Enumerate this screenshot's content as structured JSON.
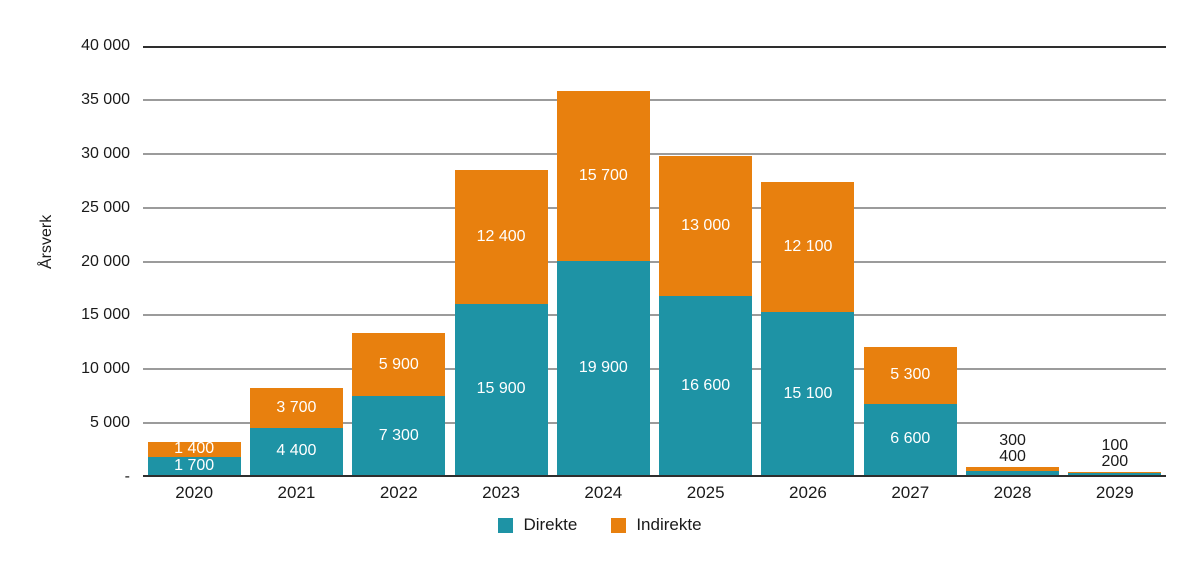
{
  "chart_data": {
    "type": "bar",
    "stacked": true,
    "title": "",
    "xlabel": "",
    "ylabel": "Årsverk",
    "categories": [
      "2020",
      "2021",
      "2022",
      "2023",
      "2024",
      "2025",
      "2026",
      "2027",
      "2028",
      "2029"
    ],
    "series": [
      {
        "name": "Direkte",
        "color": "#1E93A5",
        "values": [
          1700,
          4400,
          7300,
          15900,
          19900,
          16600,
          15100,
          6600,
          400,
          200
        ]
      },
      {
        "name": "Indirekte",
        "color": "#E8800E",
        "values": [
          1400,
          3700,
          5900,
          12400,
          15700,
          13000,
          12100,
          5300,
          300,
          100
        ]
      }
    ],
    "bar_value_labels": [
      {
        "direkte": "1 700",
        "indirekte": "1 400",
        "placement": "inside"
      },
      {
        "direkte": "4 400",
        "indirekte": "3 700",
        "placement": "inside"
      },
      {
        "direkte": "7 300",
        "indirekte": "5 900",
        "placement": "inside"
      },
      {
        "direkte": "15 900",
        "indirekte": "12 400",
        "placement": "inside"
      },
      {
        "direkte": "19 900",
        "indirekte": "15 700",
        "placement": "inside"
      },
      {
        "direkte": "16 600",
        "indirekte": "13 000",
        "placement": "inside"
      },
      {
        "direkte": "15 100",
        "indirekte": "12 100",
        "placement": "inside"
      },
      {
        "direkte": "6 600",
        "indirekte": "5 300",
        "placement": "inside"
      },
      {
        "direkte": "400",
        "indirekte": "300",
        "placement": "outside"
      },
      {
        "direkte": "200",
        "indirekte": "100",
        "placement": "outside"
      }
    ],
    "ylim": [
      0,
      40000
    ],
    "ytick_step": 5000,
    "yticks": [
      0,
      5000,
      10000,
      15000,
      20000,
      25000,
      30000,
      35000,
      40000
    ],
    "ytick_labels": [
      "-",
      "5 000",
      "10 000",
      "15 000",
      "20 000",
      "25 000",
      "30 000",
      "35 000",
      "40 000"
    ],
    "grid": "horizontal",
    "gridline_color": "#9B9B9B",
    "top_border_color": "#2E2E2E",
    "axis_line_color": "#2E2E2E",
    "inside_label_color": "#FFFFFF",
    "outside_label_color": "#1A1A1A",
    "legend": {
      "position": "bottom",
      "entries": [
        "Direkte",
        "Indirekte"
      ]
    }
  }
}
